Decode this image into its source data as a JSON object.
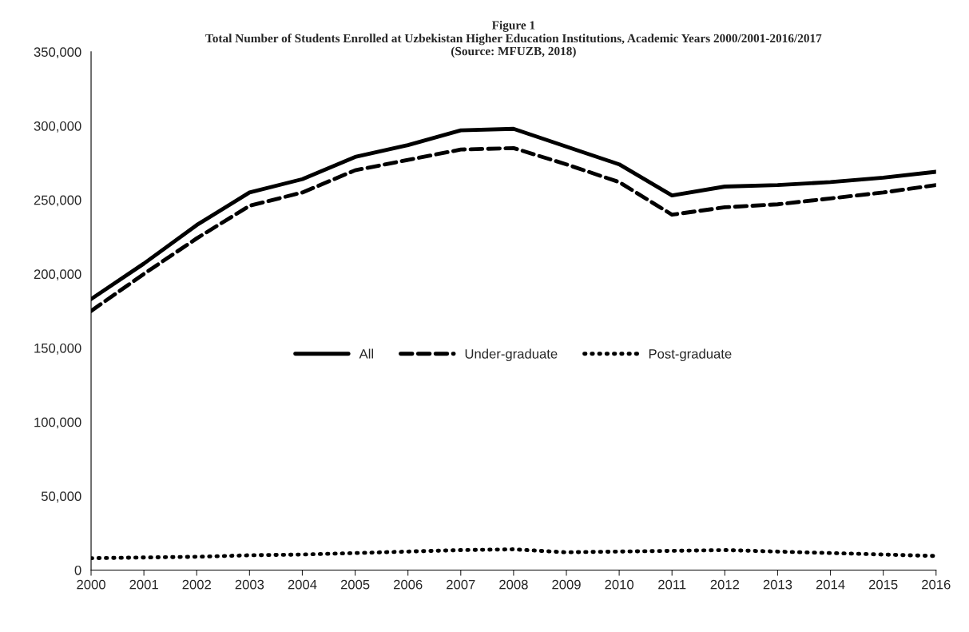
{
  "chart_data": {
    "type": "line",
    "title": "Figure 1",
    "subtitle": "Total Number of Students Enrolled at Uzbekistan Higher Education Institutions, Academic Years 2000/2001-2016/2017",
    "annotations": [
      "(Source: MFUZB, 2018)"
    ],
    "x": [
      2000,
      2001,
      2002,
      2003,
      2004,
      2005,
      2006,
      2007,
      2008,
      2009,
      2010,
      2011,
      2012,
      2013,
      2014,
      2015,
      2016
    ],
    "xlim": [
      2000,
      2016
    ],
    "xticks": [
      2000,
      2001,
      2002,
      2003,
      2004,
      2005,
      2006,
      2007,
      2008,
      2009,
      2010,
      2011,
      2012,
      2013,
      2014,
      2015,
      2016
    ],
    "ylim": [
      0,
      350000
    ],
    "yticks": [
      {
        "value": 0,
        "label": "0"
      },
      {
        "value": 50000,
        "label": "50,000"
      },
      {
        "value": 100000,
        "label": "100,000"
      },
      {
        "value": 150000,
        "label": "150,000"
      },
      {
        "value": 200000,
        "label": "200,000"
      },
      {
        "value": 250000,
        "label": "250,000"
      },
      {
        "value": 300000,
        "label": "300,000"
      },
      {
        "value": 350000,
        "label": "350,000"
      }
    ],
    "grid": false,
    "legend": "center",
    "marker": "none",
    "series": [
      {
        "name": "All",
        "color": "#000000",
        "line_style": "solid",
        "values": [
          183000,
          207000,
          233000,
          255000,
          264000,
          279000,
          287000,
          297000,
          298000,
          286000,
          274000,
          253000,
          259000,
          260000,
          262000,
          265000,
          269000
        ]
      },
      {
        "name": "Under-graduate",
        "color": "#000000",
        "line_style": "dashed",
        "values": [
          175000,
          200000,
          224000,
          246000,
          255000,
          270000,
          277000,
          284000,
          285000,
          274000,
          262000,
          240000,
          245000,
          247000,
          251000,
          255000,
          260000
        ]
      },
      {
        "name": "Post-graduate",
        "color": "#000000",
        "line_style": "dotted",
        "values": [
          8000,
          8500,
          9000,
          10000,
          10500,
          11500,
          12500,
          13500,
          14000,
          12000,
          12500,
          13000,
          13500,
          12500,
          11500,
          10500,
          9500
        ]
      }
    ]
  }
}
